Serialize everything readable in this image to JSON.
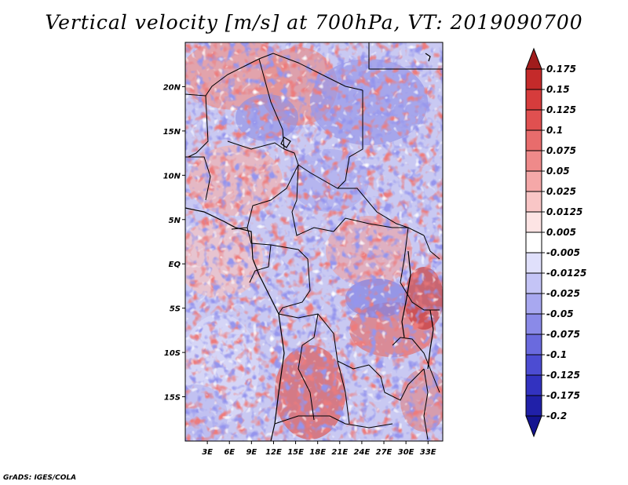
{
  "title": "Vertical velocity [m/s] at 700hPa, VT: 2019090700",
  "credit": "GrADS: IGES/COLA",
  "map": {
    "lon_labels": [
      "3E",
      "6E",
      "9E",
      "12E",
      "15E",
      "18E",
      "21E",
      "24E",
      "27E",
      "30E",
      "33E"
    ],
    "lon_values": [
      3,
      6,
      9,
      12,
      15,
      18,
      21,
      24,
      27,
      30,
      33
    ],
    "lon_range": [
      0,
      35
    ],
    "lat_labels": [
      "20N",
      "15N",
      "10N",
      "5N",
      "EQ",
      "5S",
      "10S",
      "15S"
    ],
    "lat_values": [
      20,
      15,
      10,
      5,
      0,
      -5,
      -10,
      -15
    ],
    "lat_range": [
      -20,
      25
    ]
  },
  "colorbar": {
    "levels": [
      "0.175",
      "0.15",
      "0.125",
      "0.1",
      "0.075",
      "0.05",
      "0.025",
      "0.0125",
      "0.005",
      "-0.005",
      "-0.0125",
      "-0.025",
      "-0.05",
      "-0.075",
      "-0.1",
      "-0.125",
      "-0.175",
      "-0.2"
    ],
    "colors": [
      "#a11c1c",
      "#c42a2a",
      "#d63c3c",
      "#e05050",
      "#e86c6c",
      "#ef8a8a",
      "#f5a8a8",
      "#f9c6c6",
      "#fde4e4",
      "#ffffff",
      "#e0e0fb",
      "#c4c4f6",
      "#a8a8f0",
      "#8a8ae8",
      "#6a6ade",
      "#4c4cd2",
      "#3232c0",
      "#2020a8",
      "#141490"
    ]
  }
}
